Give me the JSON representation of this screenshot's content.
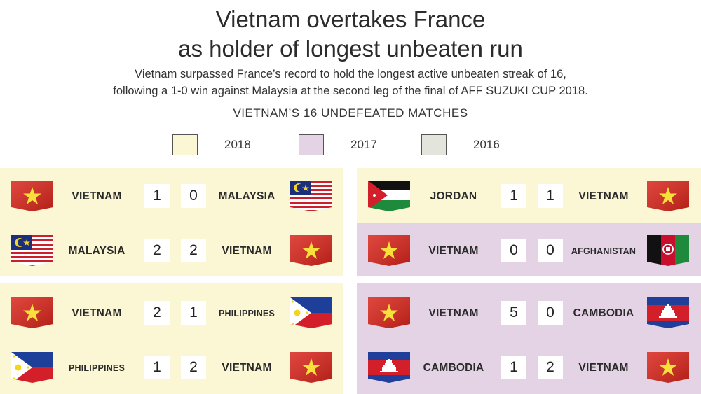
{
  "header": {
    "title_line1": "Vietnam overtakes France",
    "title_line2": "as holder of longest unbeaten run",
    "subtitle_line1": "Vietnam surpassed France’s record to hold the longest active unbeaten streak of 16,",
    "subtitle_line2": "following a 1-0 win against Malaysia at the second leg of the final of AFF SUZUKI CUP 2018.",
    "section_title": "VIETNAM’S 16 UNDEFEATED MATCHES"
  },
  "legend": [
    {
      "label": "2018",
      "color": "#fbf6d3"
    },
    {
      "label": "2017",
      "color": "#e4d3e5"
    },
    {
      "label": "2016",
      "color": "#e3e4dc"
    }
  ],
  "colors": {
    "year_2018": "#fbf6d3",
    "year_2017": "#e4d3e5",
    "vietnam_red": "#d9261c",
    "vietnam_star": "#f7e03a"
  },
  "matches": [
    {
      "home": "VIETNAM",
      "home_flag": "vietnam-flag",
      "home_score": "1",
      "away_score": "0",
      "away": "MALAYSIA",
      "away_flag": "malaysia-flag",
      "year": "2018"
    },
    {
      "home": "MALAYSIA",
      "home_flag": "malaysia-flag",
      "home_score": "2",
      "away_score": "2",
      "away": "VIETNAM",
      "away_flag": "vietnam-flag",
      "year": "2018"
    },
    {
      "home": "VIETNAM",
      "home_flag": "vietnam-flag",
      "home_score": "2",
      "away_score": "1",
      "away": "PHILIPPINES",
      "away_flag": "philippines-flag",
      "year": "2018"
    },
    {
      "home": "PHILIPPINES",
      "home_flag": "philippines-flag",
      "home_score": "1",
      "away_score": "2",
      "away": "VIETNAM",
      "away_flag": "vietnam-flag",
      "year": "2018"
    },
    {
      "home": "JORDAN",
      "home_flag": "jordan-flag",
      "home_score": "1",
      "away_score": "1",
      "away": "VIETNAM",
      "away_flag": "vietnam-flag",
      "year": "2018"
    },
    {
      "home": "VIETNAM",
      "home_flag": "vietnam-flag",
      "home_score": "0",
      "away_score": "0",
      "away": "AFGHANISTAN",
      "away_flag": "afghanistan-flag",
      "year": "2017"
    },
    {
      "home": "VIETNAM",
      "home_flag": "vietnam-flag",
      "home_score": "5",
      "away_score": "0",
      "away": "CAMBODIA",
      "away_flag": "cambodia-flag",
      "year": "2017"
    },
    {
      "home": "CAMBODIA",
      "home_flag": "cambodia-flag",
      "home_score": "1",
      "away_score": "2",
      "away": "VIETNAM",
      "away_flag": "vietnam-flag",
      "year": "2017"
    }
  ]
}
